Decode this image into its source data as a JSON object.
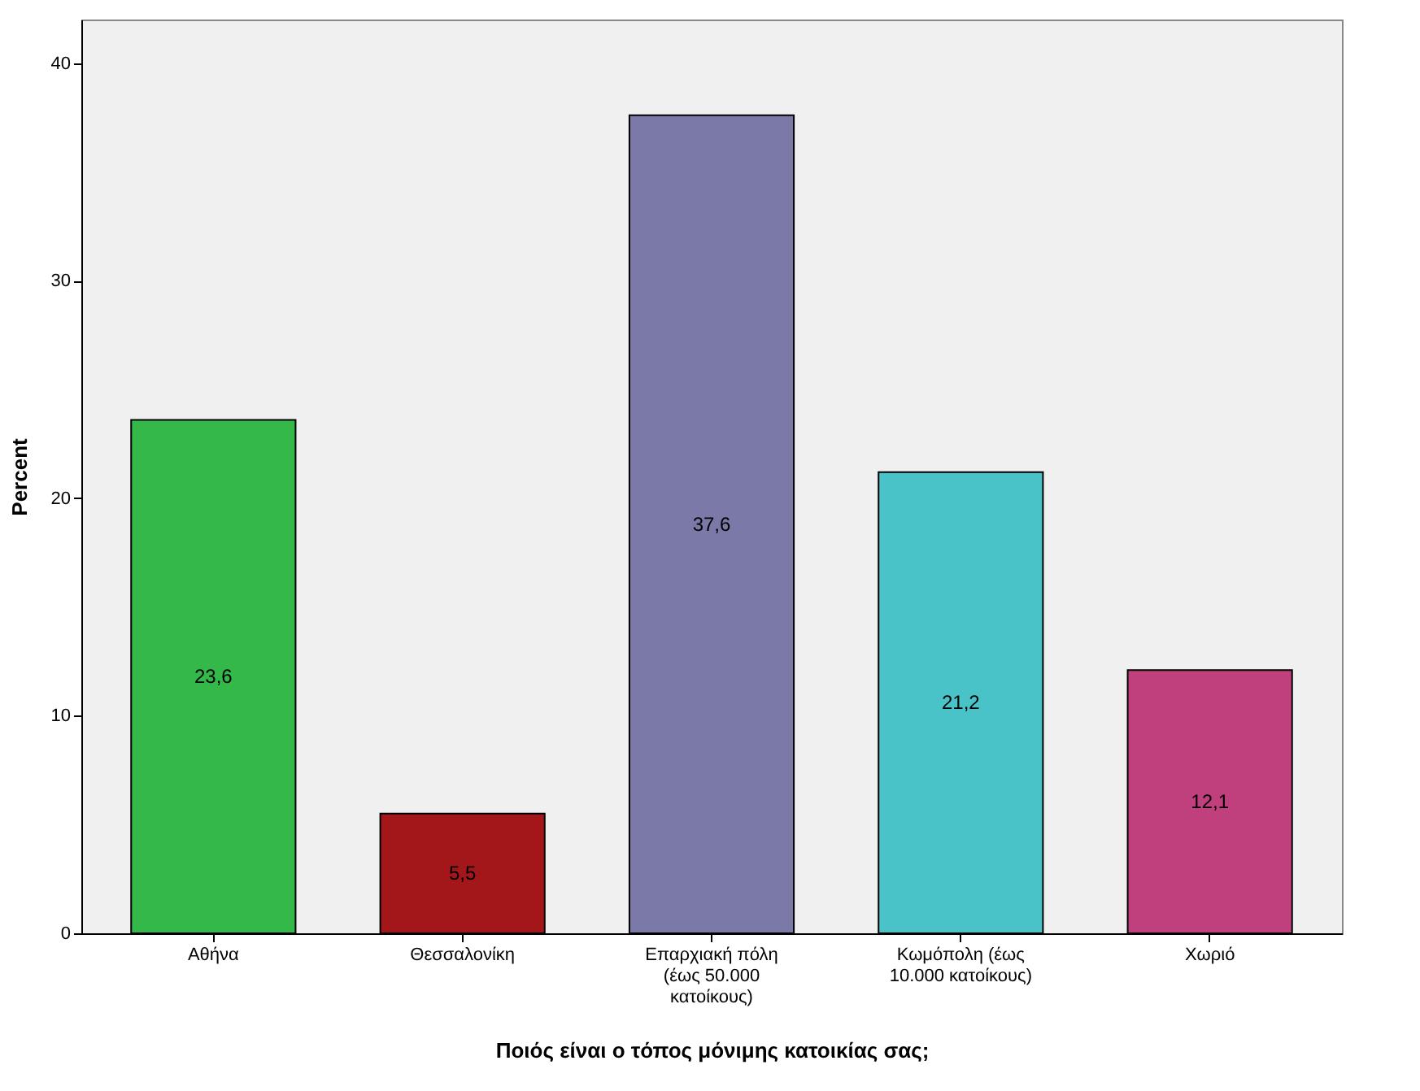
{
  "chart_data": {
    "type": "bar",
    "categories": [
      "Αθήνα",
      "Θεσσαλονίκη",
      "Επαρχιακή πόλη (έως 50.000 κατοίκους)",
      "Κωμόπολη (έως 10.000 κατοίκους)",
      "Χωριό"
    ],
    "values": [
      23.6,
      5.5,
      37.6,
      21.2,
      12.1
    ],
    "colors": [
      "#33b849",
      "#a3171b",
      "#7b79a8",
      "#4ac3c8",
      "#c03f7d"
    ],
    "value_labels": [
      "23,6",
      "5,5",
      "37,6",
      "21,2",
      "12,1"
    ],
    "xlabel": "Ποιός είναι ο τόπος μόνιμης κατοικίας σας;",
    "ylabel": "Percent",
    "ylim": [
      0,
      42
    ],
    "yticks": [
      0,
      10,
      20,
      30,
      40
    ]
  }
}
